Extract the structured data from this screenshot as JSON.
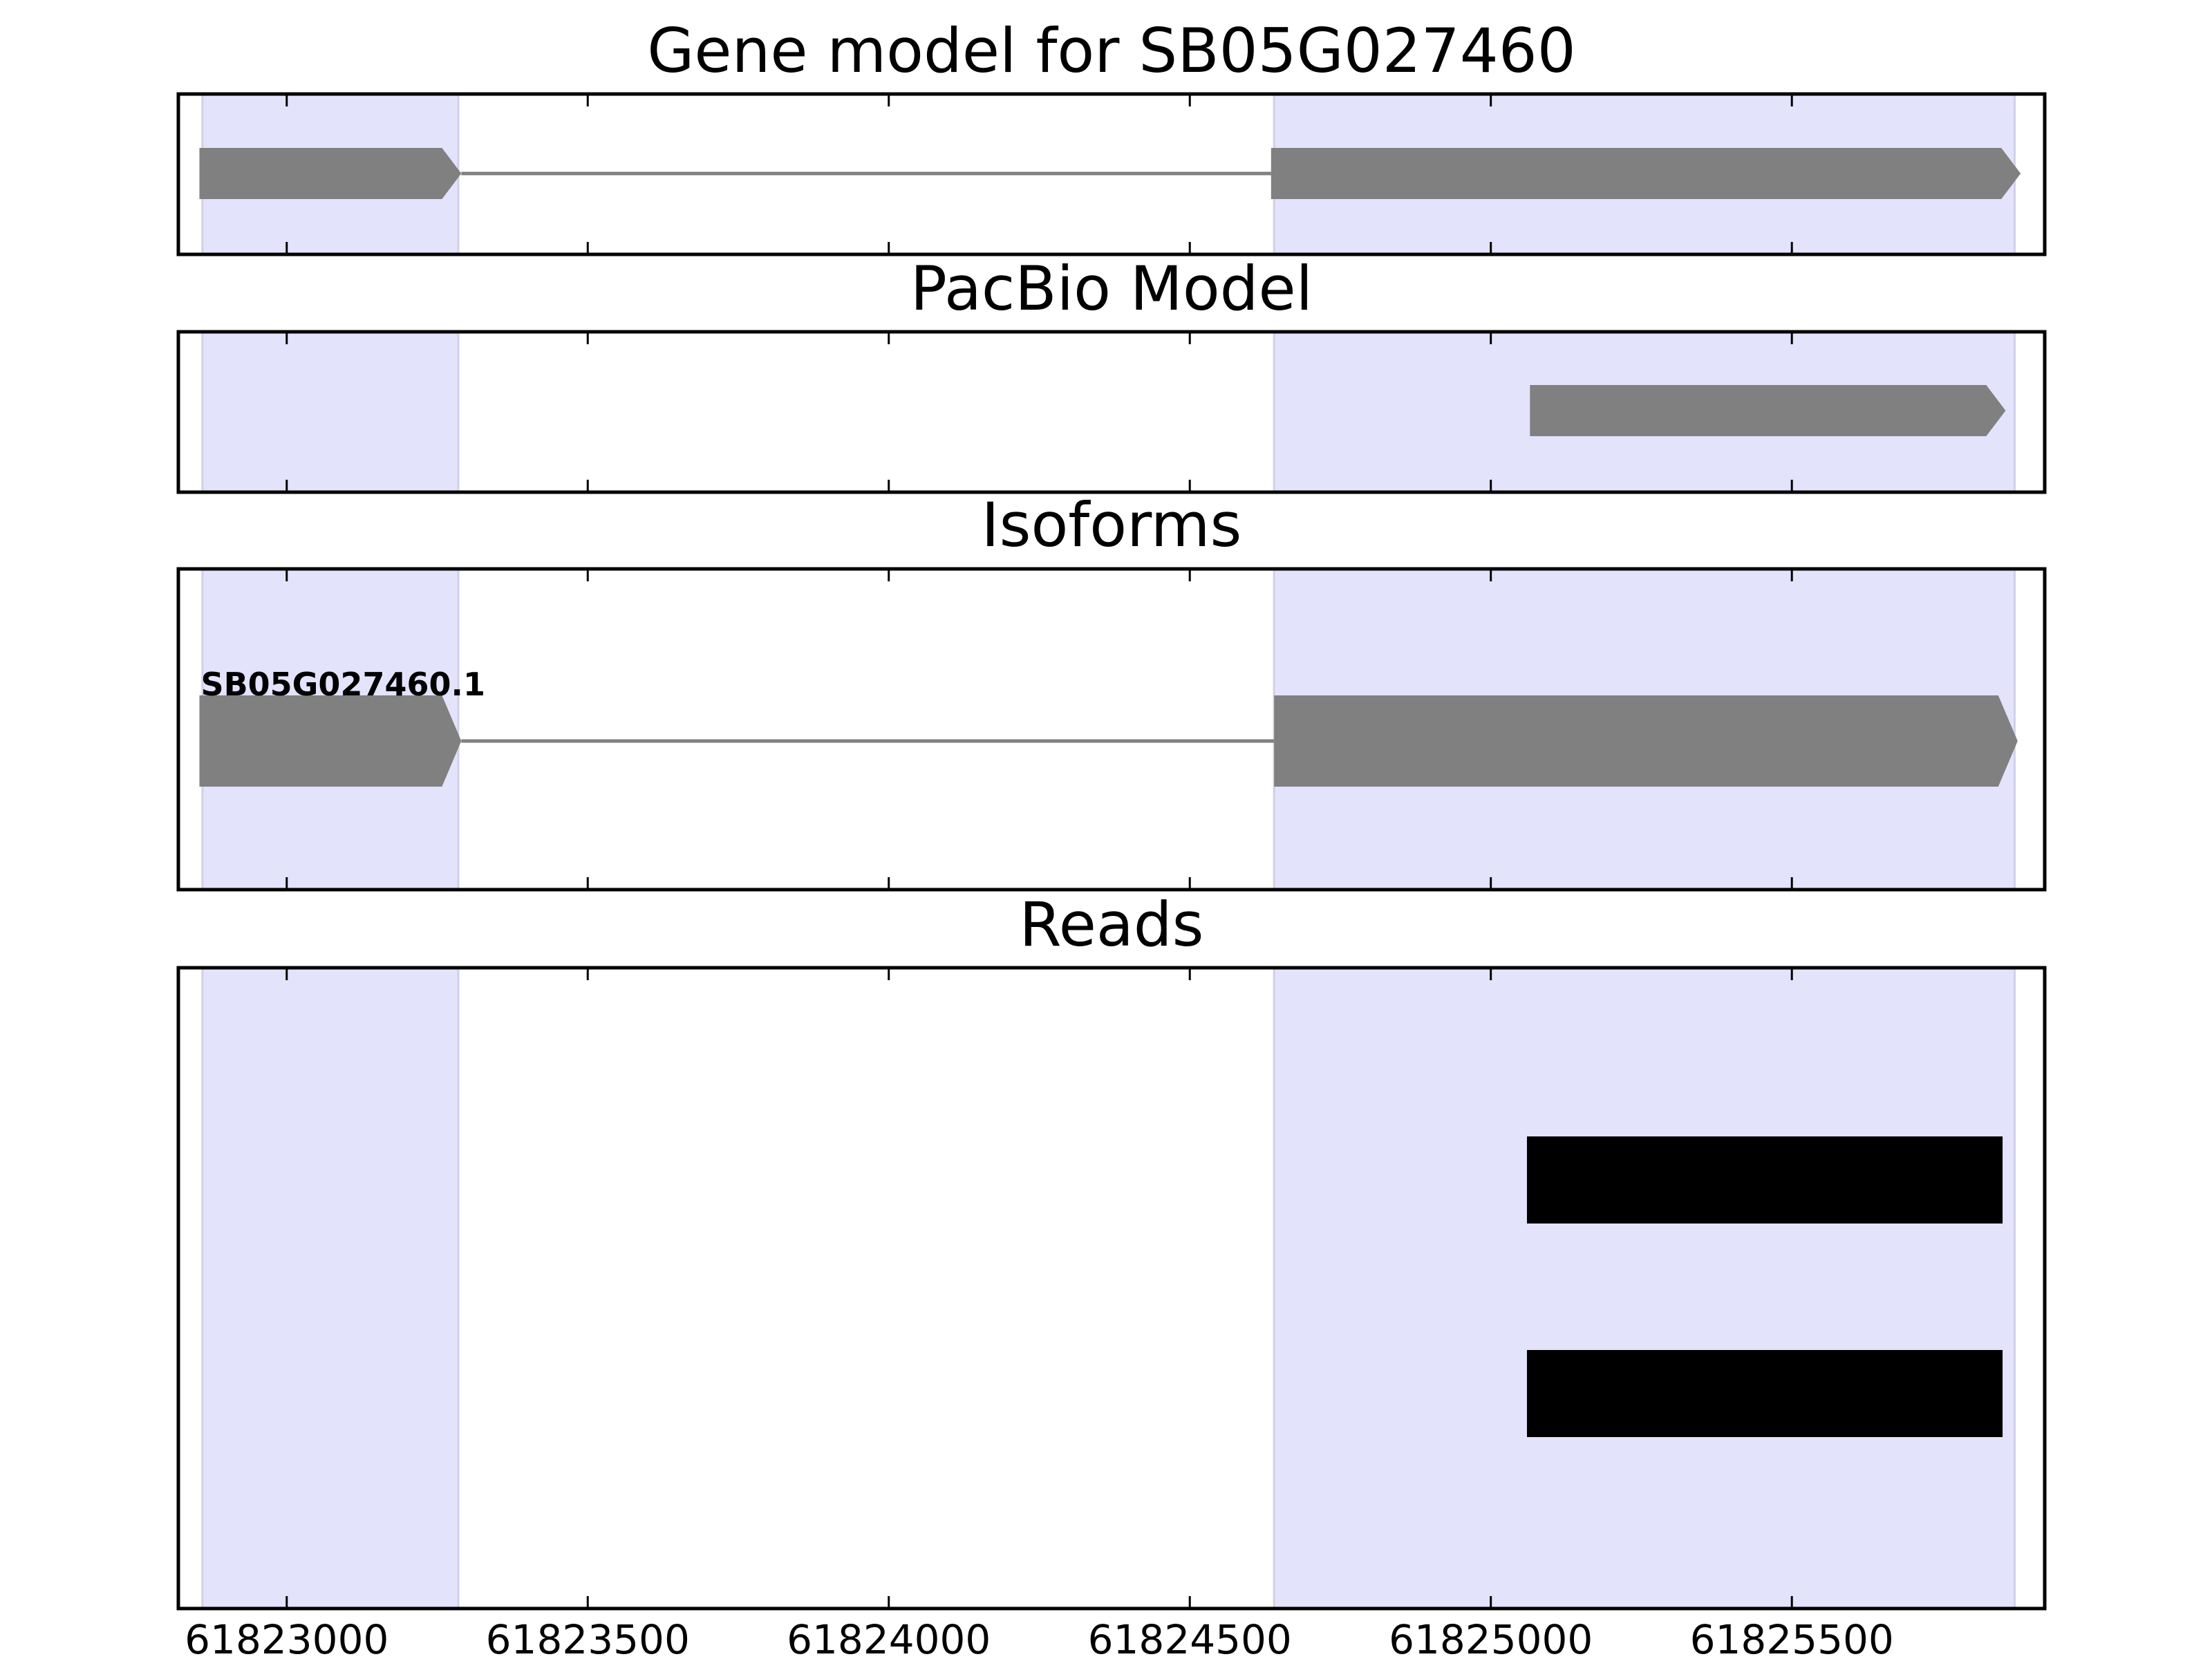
{
  "chart_data": {
    "type": "gene-track",
    "title": "Gene model for SB05G027460",
    "x_range": [
      61822820,
      61825920
    ],
    "x_ticks": [
      61823000,
      61823500,
      61824000,
      61824500,
      61825000,
      61825500
    ],
    "exon_regions": [
      {
        "start": 61822860,
        "end": 61823285
      },
      {
        "start": 61824640,
        "end": 61825870
      }
    ],
    "panels": [
      {
        "title": "Gene model for SB05G027460",
        "features": [
          {
            "type": "exon",
            "start": 61822855,
            "end": 61823290,
            "strand": "+"
          },
          {
            "type": "intron",
            "start": 61823290,
            "end": 61824635
          },
          {
            "type": "exon",
            "start": 61824635,
            "end": 61825880,
            "strand": "+"
          }
        ]
      },
      {
        "title": "PacBio Model",
        "features": [
          {
            "type": "exon",
            "start": 61825065,
            "end": 61825855,
            "strand": "+"
          }
        ]
      },
      {
        "title": "Isoforms",
        "isoforms": [
          {
            "name": "SB05G027460.1",
            "features": [
              {
                "type": "exon",
                "start": 61822855,
                "end": 61823290,
                "strand": "+"
              },
              {
                "type": "intron",
                "start": 61823290,
                "end": 61824640
              },
              {
                "type": "exon",
                "start": 61824640,
                "end": 61825875,
                "strand": "+"
              }
            ]
          }
        ]
      },
      {
        "title": "Reads",
        "reads": [
          {
            "start": 61825060,
            "end": 61825850
          },
          {
            "start": 61825060,
            "end": 61825850
          }
        ]
      }
    ],
    "colors": {
      "exon": "#808080",
      "intron": "#808080",
      "read": "#000000",
      "exon_region": "#e3e3fc",
      "exon_region_edge": "#d0d0e8"
    }
  }
}
